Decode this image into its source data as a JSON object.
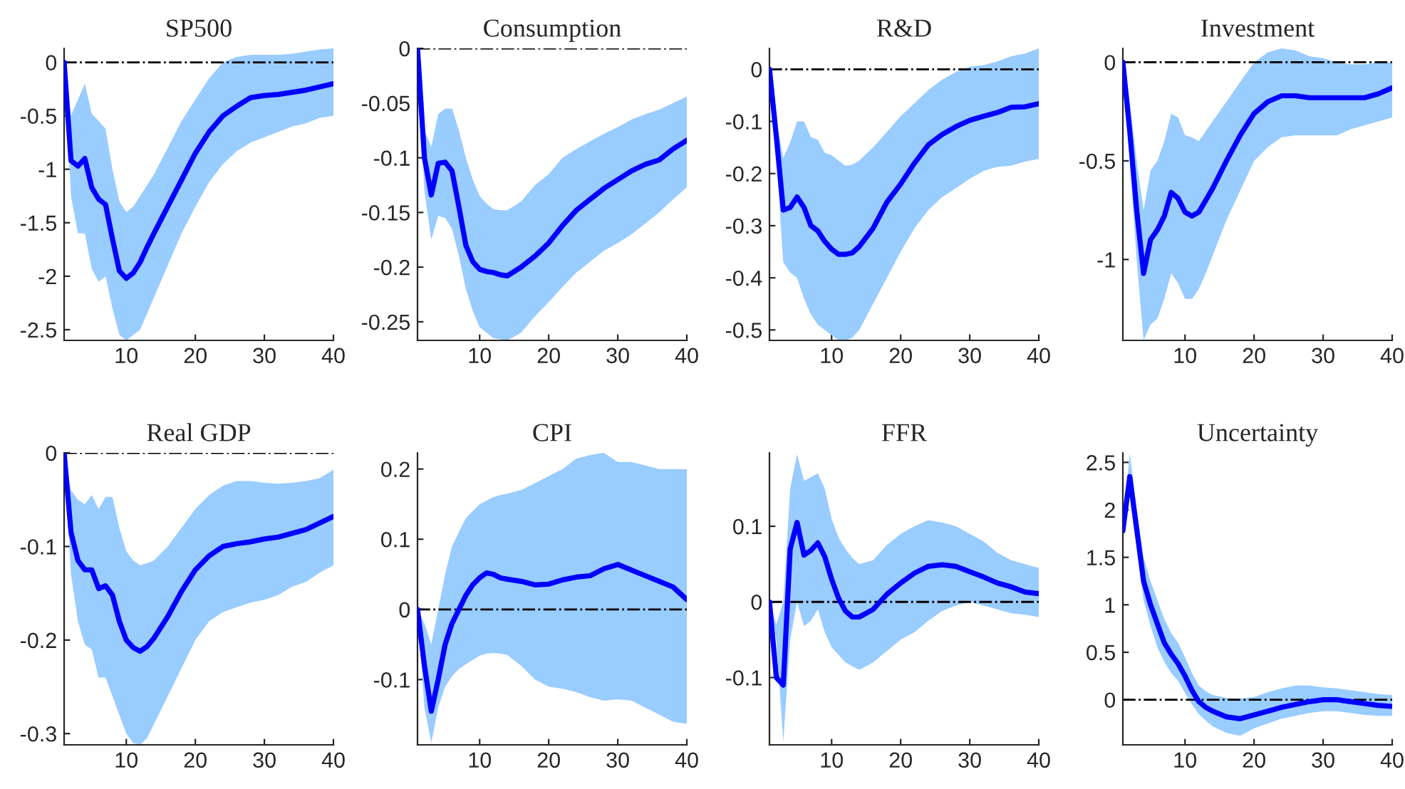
{
  "chart_data": [
    {
      "type": "line",
      "title": "SP500",
      "x": [
        1,
        2,
        3,
        4,
        5,
        6,
        7,
        8,
        9,
        10,
        11,
        12,
        13,
        14,
        16,
        18,
        20,
        22,
        24,
        26,
        28,
        30,
        32,
        34,
        36,
        38,
        40
      ],
      "xlim": [
        1,
        40
      ],
      "xticks": [
        10,
        20,
        30,
        40
      ],
      "ylim": [
        -2.6,
        0.13
      ],
      "yticks": [
        -2.5,
        -2,
        -1.5,
        -1,
        -0.5,
        0
      ],
      "grid": false,
      "ref_lines": [
        {
          "axis": "y",
          "value": 0,
          "color": "#000000",
          "line_style": "dashdot"
        }
      ],
      "series": [
        {
          "color": "#0000ff",
          "values": [
            0,
            -0.92,
            -0.97,
            -0.9,
            -1.17,
            -1.28,
            -1.33,
            -1.65,
            -1.95,
            -2.02,
            -1.97,
            -1.87,
            -1.73,
            -1.6,
            -1.35,
            -1.1,
            -0.85,
            -0.65,
            -0.5,
            -0.41,
            -0.33,
            -0.31,
            -0.3,
            -0.28,
            -0.26,
            -0.23,
            -0.2
          ],
          "lower": [
            0,
            -1.25,
            -1.6,
            -1.6,
            -1.93,
            -2.05,
            -2.0,
            -2.3,
            -2.55,
            -2.6,
            -2.55,
            -2.5,
            -2.35,
            -2.2,
            -1.9,
            -1.6,
            -1.35,
            -1.12,
            -0.95,
            -0.83,
            -0.75,
            -0.7,
            -0.65,
            -0.6,
            -0.57,
            -0.52,
            -0.5
          ],
          "upper": [
            0,
            -0.5,
            -0.35,
            -0.2,
            -0.48,
            -0.55,
            -0.62,
            -1.0,
            -1.3,
            -1.4,
            -1.35,
            -1.25,
            -1.15,
            -1.05,
            -0.8,
            -0.55,
            -0.35,
            -0.15,
            0.0,
            0.05,
            0.07,
            0.07,
            0.07,
            0.08,
            0.1,
            0.12,
            0.13
          ]
        }
      ]
    },
    {
      "type": "line",
      "title": "Consumption",
      "x": [
        1,
        2,
        3,
        4,
        5,
        6,
        7,
        8,
        9,
        10,
        11,
        12,
        13,
        14,
        16,
        18,
        20,
        22,
        24,
        26,
        28,
        30,
        32,
        34,
        36,
        38,
        40
      ],
      "xlim": [
        1,
        40
      ],
      "xticks": [
        10,
        20,
        30,
        40
      ],
      "ylim": [
        -0.267,
        0
      ],
      "yticks": [
        -0.25,
        -0.2,
        -0.15,
        -0.1,
        -0.05,
        0
      ],
      "grid": false,
      "ref_lines": [
        {
          "axis": "y",
          "value": 0,
          "color": "#000000",
          "line_style": "dashdot"
        }
      ],
      "series": [
        {
          "color": "#0000ff",
          "values": [
            0,
            -0.1,
            -0.134,
            -0.105,
            -0.104,
            -0.112,
            -0.145,
            -0.18,
            -0.195,
            -0.202,
            -0.204,
            -0.205,
            -0.207,
            -0.208,
            -0.2,
            -0.19,
            -0.178,
            -0.162,
            -0.148,
            -0.138,
            -0.128,
            -0.12,
            -0.112,
            -0.106,
            -0.102,
            -0.092,
            -0.084
          ],
          "lower": [
            0,
            -0.13,
            -0.175,
            -0.153,
            -0.155,
            -0.165,
            -0.19,
            -0.22,
            -0.24,
            -0.255,
            -0.26,
            -0.265,
            -0.266,
            -0.267,
            -0.26,
            -0.245,
            -0.232,
            -0.218,
            -0.205,
            -0.195,
            -0.185,
            -0.178,
            -0.17,
            -0.16,
            -0.15,
            -0.138,
            -0.127
          ],
          "upper": [
            0,
            -0.075,
            -0.09,
            -0.06,
            -0.055,
            -0.055,
            -0.075,
            -0.1,
            -0.12,
            -0.135,
            -0.142,
            -0.147,
            -0.148,
            -0.148,
            -0.14,
            -0.125,
            -0.115,
            -0.1,
            -0.092,
            -0.085,
            -0.078,
            -0.072,
            -0.065,
            -0.06,
            -0.056,
            -0.05,
            -0.044
          ]
        }
      ]
    },
    {
      "type": "line",
      "title": "R&D",
      "x": [
        1,
        2,
        3,
        4,
        5,
        6,
        7,
        8,
        9,
        10,
        11,
        12,
        13,
        14,
        16,
        18,
        20,
        22,
        24,
        26,
        28,
        30,
        32,
        34,
        36,
        38,
        40
      ],
      "xlim": [
        1,
        40
      ],
      "xticks": [
        10,
        20,
        30,
        40
      ],
      "ylim": [
        -0.52,
        0.04
      ],
      "yticks": [
        -0.5,
        -0.4,
        -0.3,
        -0.2,
        -0.1,
        0
      ],
      "grid": false,
      "ref_lines": [
        {
          "axis": "y",
          "value": 0,
          "color": "#000000",
          "line_style": "dashdot"
        }
      ],
      "series": [
        {
          "color": "#0000ff",
          "values": [
            0,
            -0.13,
            -0.27,
            -0.265,
            -0.245,
            -0.265,
            -0.3,
            -0.31,
            -0.33,
            -0.345,
            -0.355,
            -0.355,
            -0.352,
            -0.34,
            -0.305,
            -0.255,
            -0.22,
            -0.18,
            -0.145,
            -0.125,
            -0.11,
            -0.098,
            -0.09,
            -0.083,
            -0.073,
            -0.072,
            -0.066
          ],
          "lower": [
            0,
            -0.17,
            -0.37,
            -0.39,
            -0.4,
            -0.44,
            -0.47,
            -0.49,
            -0.5,
            -0.51,
            -0.52,
            -0.52,
            -0.515,
            -0.5,
            -0.45,
            -0.4,
            -0.35,
            -0.305,
            -0.27,
            -0.245,
            -0.228,
            -0.21,
            -0.195,
            -0.187,
            -0.185,
            -0.177,
            -0.172
          ],
          "upper": [
            0,
            -0.1,
            -0.17,
            -0.14,
            -0.1,
            -0.1,
            -0.13,
            -0.135,
            -0.16,
            -0.165,
            -0.175,
            -0.185,
            -0.183,
            -0.175,
            -0.15,
            -0.12,
            -0.09,
            -0.065,
            -0.04,
            -0.02,
            -0.005,
            0.005,
            0.008,
            0.015,
            0.025,
            0.03,
            0.04
          ]
        }
      ]
    },
    {
      "type": "line",
      "title": "Investment",
      "x": [
        1,
        2,
        3,
        4,
        5,
        6,
        7,
        8,
        9,
        10,
        11,
        12,
        13,
        14,
        16,
        18,
        20,
        22,
        24,
        26,
        28,
        30,
        32,
        34,
        36,
        38,
        40
      ],
      "xlim": [
        1,
        40
      ],
      "xticks": [
        10,
        20,
        30,
        40
      ],
      "ylim": [
        -1.41,
        0.07
      ],
      "yticks": [
        -1,
        -0.5,
        0
      ],
      "grid": false,
      "ref_lines": [
        {
          "axis": "y",
          "value": 0,
          "color": "#000000",
          "line_style": "dashdot"
        }
      ],
      "series": [
        {
          "color": "#0000ff",
          "values": [
            0,
            -0.35,
            -0.75,
            -1.07,
            -0.9,
            -0.85,
            -0.78,
            -0.66,
            -0.69,
            -0.76,
            -0.78,
            -0.76,
            -0.7,
            -0.64,
            -0.5,
            -0.37,
            -0.26,
            -0.2,
            -0.17,
            -0.17,
            -0.18,
            -0.18,
            -0.18,
            -0.18,
            -0.18,
            -0.16,
            -0.13
          ],
          "lower": [
            0,
            -0.5,
            -1.0,
            -1.41,
            -1.33,
            -1.3,
            -1.2,
            -1.07,
            -1.12,
            -1.2,
            -1.2,
            -1.15,
            -1.07,
            -0.98,
            -0.8,
            -0.65,
            -0.5,
            -0.43,
            -0.38,
            -0.37,
            -0.37,
            -0.37,
            -0.37,
            -0.34,
            -0.32,
            -0.3,
            -0.28
          ],
          "upper": [
            0,
            -0.2,
            -0.5,
            -0.75,
            -0.55,
            -0.5,
            -0.4,
            -0.26,
            -0.28,
            -0.37,
            -0.38,
            -0.4,
            -0.35,
            -0.3,
            -0.2,
            -0.1,
            0.0,
            0.05,
            0.07,
            0.06,
            0.03,
            0.02,
            0.0,
            -0.01,
            -0.01,
            0.0,
            0.0
          ]
        }
      ]
    },
    {
      "type": "line",
      "title": "Real GDP",
      "x": [
        1,
        2,
        3,
        4,
        5,
        6,
        7,
        8,
        9,
        10,
        11,
        12,
        13,
        14,
        16,
        18,
        20,
        22,
        24,
        26,
        28,
        30,
        32,
        34,
        36,
        38,
        40
      ],
      "xlim": [
        1,
        40
      ],
      "xticks": [
        10,
        20,
        30,
        40
      ],
      "ylim": [
        -0.312,
        0
      ],
      "yticks": [
        -0.3,
        -0.2,
        -0.1,
        0
      ],
      "grid": false,
      "ref_lines": [
        {
          "axis": "y",
          "value": 0,
          "color": "#000000",
          "line_style": "dashdot"
        }
      ],
      "series": [
        {
          "color": "#0000ff",
          "values": [
            0,
            -0.085,
            -0.115,
            -0.125,
            -0.125,
            -0.145,
            -0.142,
            -0.152,
            -0.18,
            -0.2,
            -0.208,
            -0.212,
            -0.207,
            -0.198,
            -0.175,
            -0.148,
            -0.125,
            -0.11,
            -0.1,
            -0.097,
            -0.095,
            -0.092,
            -0.09,
            -0.086,
            -0.082,
            -0.075,
            -0.068
          ],
          "lower": [
            0,
            -0.13,
            -0.18,
            -0.205,
            -0.21,
            -0.24,
            -0.24,
            -0.26,
            -0.28,
            -0.3,
            -0.31,
            -0.312,
            -0.305,
            -0.29,
            -0.26,
            -0.23,
            -0.2,
            -0.18,
            -0.17,
            -0.165,
            -0.16,
            -0.157,
            -0.152,
            -0.143,
            -0.138,
            -0.128,
            -0.12
          ],
          "upper": [
            0,
            -0.04,
            -0.05,
            -0.055,
            -0.045,
            -0.06,
            -0.047,
            -0.047,
            -0.08,
            -0.105,
            -0.115,
            -0.12,
            -0.118,
            -0.115,
            -0.1,
            -0.08,
            -0.06,
            -0.045,
            -0.035,
            -0.03,
            -0.03,
            -0.032,
            -0.033,
            -0.032,
            -0.03,
            -0.027,
            -0.018
          ]
        }
      ]
    },
    {
      "type": "line",
      "title": "CPI",
      "x": [
        1,
        2,
        3,
        4,
        5,
        6,
        7,
        8,
        9,
        10,
        11,
        12,
        13,
        14,
        16,
        18,
        20,
        22,
        24,
        26,
        28,
        30,
        32,
        34,
        36,
        38,
        40
      ],
      "xlim": [
        1,
        40
      ],
      "xticks": [
        10,
        20,
        30,
        40
      ],
      "ylim": [
        -0.193,
        0.223
      ],
      "yticks": [
        -0.1,
        0,
        0.1,
        0.2
      ],
      "grid": false,
      "ref_lines": [
        {
          "axis": "y",
          "value": 0,
          "color": "#000000",
          "line_style": "dashdot"
        }
      ],
      "series": [
        {
          "color": "#0000ff",
          "values": [
            0,
            -0.08,
            -0.145,
            -0.1,
            -0.05,
            -0.02,
            0.0,
            0.02,
            0.035,
            0.045,
            0.052,
            0.05,
            0.045,
            0.043,
            0.04,
            0.035,
            0.036,
            0.042,
            0.046,
            0.048,
            0.058,
            0.064,
            0.056,
            0.048,
            0.04,
            0.032,
            0.014
          ],
          "lower": [
            0,
            -0.14,
            -0.19,
            -0.14,
            -0.11,
            -0.095,
            -0.085,
            -0.078,
            -0.072,
            -0.066,
            -0.063,
            -0.062,
            -0.063,
            -0.065,
            -0.08,
            -0.1,
            -0.11,
            -0.113,
            -0.118,
            -0.125,
            -0.13,
            -0.128,
            -0.13,
            -0.14,
            -0.15,
            -0.16,
            -0.163
          ],
          "upper": [
            0,
            -0.02,
            -0.05,
            0.0,
            0.05,
            0.09,
            0.11,
            0.13,
            0.14,
            0.15,
            0.155,
            0.16,
            0.163,
            0.165,
            0.17,
            0.18,
            0.19,
            0.2,
            0.215,
            0.22,
            0.223,
            0.21,
            0.21,
            0.205,
            0.2,
            0.2,
            0.2
          ]
        }
      ]
    },
    {
      "type": "line",
      "title": "FFR",
      "x": [
        1,
        2,
        3,
        4,
        5,
        6,
        7,
        8,
        9,
        10,
        11,
        12,
        13,
        14,
        16,
        18,
        20,
        22,
        24,
        26,
        28,
        30,
        32,
        34,
        36,
        38,
        40
      ],
      "xlim": [
        1,
        40
      ],
      "xticks": [
        10,
        20,
        30,
        40
      ],
      "ylim": [
        -0.189,
        0.197
      ],
      "yticks": [
        -0.1,
        0,
        0.1
      ],
      "grid": false,
      "ref_lines": [
        {
          "axis": "y",
          "value": 0,
          "color": "#000000",
          "line_style": "dashdot"
        }
      ],
      "series": [
        {
          "color": "#0000ff",
          "values": [
            0,
            -0.1,
            -0.11,
            0.07,
            0.105,
            0.062,
            0.068,
            0.078,
            0.06,
            0.03,
            0.005,
            -0.012,
            -0.02,
            -0.02,
            -0.01,
            0.01,
            0.025,
            0.038,
            0.047,
            0.049,
            0.047,
            0.04,
            0.033,
            0.025,
            0.02,
            0.013,
            0.011
          ],
          "lower": [
            0,
            -0.05,
            -0.185,
            -0.05,
            0.0,
            -0.032,
            -0.025,
            -0.01,
            -0.04,
            -0.06,
            -0.07,
            -0.08,
            -0.085,
            -0.09,
            -0.08,
            -0.065,
            -0.05,
            -0.04,
            -0.025,
            -0.012,
            -0.005,
            0.0,
            -0.005,
            -0.01,
            -0.015,
            -0.017,
            -0.02
          ],
          "upper": [
            0,
            -0.03,
            0.0,
            0.15,
            0.195,
            0.16,
            0.165,
            0.17,
            0.15,
            0.11,
            0.085,
            0.07,
            0.058,
            0.05,
            0.055,
            0.075,
            0.09,
            0.1,
            0.108,
            0.105,
            0.1,
            0.09,
            0.08,
            0.065,
            0.055,
            0.05,
            0.045
          ]
        }
      ]
    },
    {
      "type": "line",
      "title": "Uncertainty",
      "x": [
        1,
        2,
        3,
        4,
        5,
        6,
        7,
        8,
        9,
        10,
        11,
        12,
        13,
        14,
        16,
        18,
        20,
        22,
        24,
        26,
        28,
        30,
        32,
        34,
        36,
        38,
        40
      ],
      "xlim": [
        1,
        40
      ],
      "xticks": [
        10,
        20,
        30,
        40
      ],
      "ylim": [
        -0.475,
        2.6
      ],
      "yticks": [
        0,
        0.5,
        1,
        1.5,
        2,
        2.5
      ],
      "grid": false,
      "ref_lines": [
        {
          "axis": "y",
          "value": 0,
          "color": "#000000",
          "line_style": "dashdot"
        }
      ],
      "series": [
        {
          "color": "#0000ff",
          "values": [
            1.78,
            2.35,
            1.8,
            1.25,
            1.0,
            0.8,
            0.6,
            0.48,
            0.38,
            0.25,
            0.1,
            -0.02,
            -0.08,
            -0.12,
            -0.18,
            -0.2,
            -0.16,
            -0.12,
            -0.08,
            -0.05,
            -0.02,
            0.0,
            0.0,
            -0.02,
            -0.04,
            -0.06,
            -0.07
          ],
          "lower": [
            1.75,
            2.15,
            1.6,
            1.05,
            0.78,
            0.55,
            0.4,
            0.28,
            0.2,
            0.07,
            -0.05,
            -0.15,
            -0.22,
            -0.28,
            -0.35,
            -0.38,
            -0.3,
            -0.25,
            -0.2,
            -0.17,
            -0.14,
            -0.12,
            -0.12,
            -0.14,
            -0.16,
            -0.17,
            -0.17
          ],
          "upper": [
            1.8,
            2.6,
            2.0,
            1.5,
            1.25,
            1.05,
            0.85,
            0.7,
            0.6,
            0.45,
            0.28,
            0.15,
            0.09,
            0.05,
            0.02,
            0.01,
            0.03,
            0.08,
            0.12,
            0.15,
            0.15,
            0.13,
            0.12,
            0.1,
            0.08,
            0.06,
            0.05
          ]
        }
      ]
    }
  ]
}
